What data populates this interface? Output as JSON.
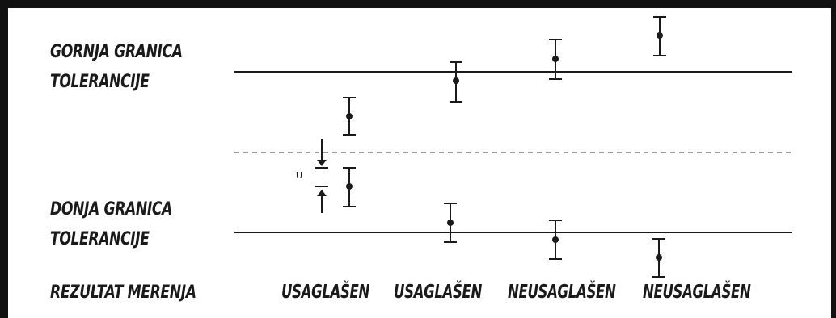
{
  "labels": {
    "upper_limit_line1": "GORNJA GRANICA",
    "upper_limit_line2": "TOLERANCIJE",
    "lower_limit_line1": "DONJA GRANICA",
    "lower_limit_line2": "TOLERANCIJE",
    "measurement_result": "REZULTAT MERENJA",
    "uncertainty_symbol": "U"
  },
  "results": [
    "USAGLAŠEN",
    "USAGLAŠEN",
    "NEUSAGLAŠEN",
    "NEUSAGLAŠEN"
  ],
  "colors": {
    "frame": "#111111",
    "line": "#1a1a1a",
    "dashed": "#7a7a7a"
  }
}
